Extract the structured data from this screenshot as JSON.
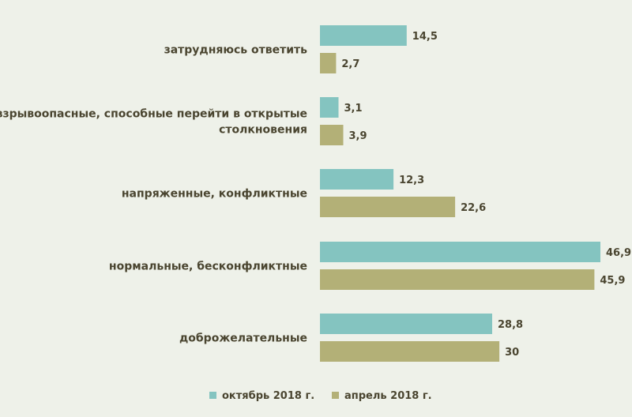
{
  "chart_data": {
    "type": "bar",
    "orientation": "horizontal",
    "categories": [
      "затрудняюсь ответить",
      "взрывоопасные, способные перейти в открытые столкновения",
      "напряженные, конфликтные",
      "нормальные, бесконфликтные",
      "доброжелательные"
    ],
    "category_lines": [
      [
        "затрудняюсь ответить"
      ],
      [
        "взрывоопасные, способные перейти в открытые",
        "столкновения"
      ],
      [
        "напряженные, конфликтные"
      ],
      [
        "нормальные, бесконфликтные"
      ],
      [
        "доброжелательные"
      ]
    ],
    "series": [
      {
        "name": "октябрь 2018 г.",
        "color": "#84c4c0",
        "values": [
          14.5,
          3.1,
          12.3,
          46.9,
          28.8
        ],
        "labels": [
          "14,5",
          "3,1",
          "12,3",
          "46,9",
          "28,8"
        ]
      },
      {
        "name": "апрель 2018 г.",
        "color": "#b3b077",
        "values": [
          2.7,
          3.9,
          22.6,
          45.9,
          30
        ],
        "labels": [
          "2,7",
          "3,9",
          "22,6",
          "45,9",
          "30"
        ]
      }
    ],
    "xlim": [
      0,
      46.9
    ],
    "grid": false,
    "legend_position": "bottom"
  }
}
